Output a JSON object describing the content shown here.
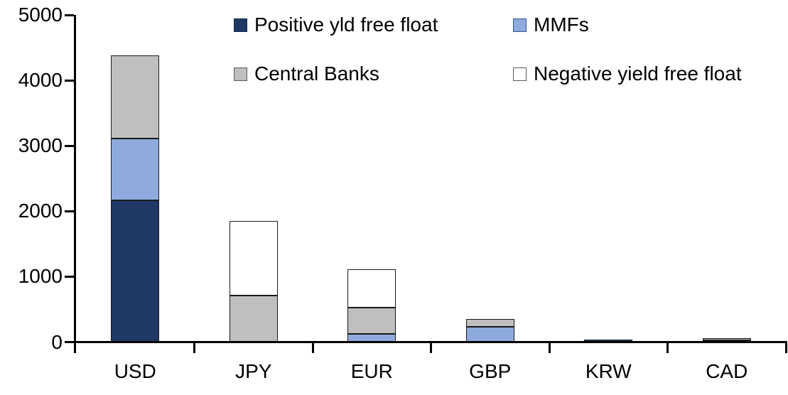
{
  "chart_data": {
    "type": "bar",
    "stacked": true,
    "title": "",
    "xlabel": "",
    "ylabel": "",
    "categories": [
      "USD",
      "JPY",
      "EUR",
      "GBP",
      "KRW",
      "CAD"
    ],
    "series": [
      {
        "name": "Positive yld free float",
        "color": "#1F3864",
        "swatch_border": "#17294C",
        "values": [
          2170,
          0,
          0,
          0,
          40,
          30
        ]
      },
      {
        "name": "MMFs",
        "color": "#8FAADC",
        "swatch_border": "#2F5597",
        "values": [
          940,
          0,
          120,
          230,
          0,
          0
        ]
      },
      {
        "name": "Central Banks",
        "color": "#BFBFBF",
        "swatch_border": "#595959",
        "values": [
          1270,
          710,
          410,
          120,
          0,
          30
        ]
      },
      {
        "name": "Negative yield free float",
        "color": "#FFFFFF",
        "swatch_border": "#595959",
        "values": [
          0,
          1140,
          580,
          0,
          0,
          0
        ]
      }
    ],
    "totals": {
      "USD": 4380,
      "JPY": 1850,
      "EUR": 1110,
      "GBP": 350,
      "KRW": 40,
      "CAD": 60
    },
    "ylim": [
      0,
      5000
    ],
    "ytick_step": 1000,
    "yticks": [
      "0",
      "1000",
      "2000",
      "3000",
      "4000",
      "5000"
    ],
    "grid": false,
    "legend_position": "top-inside",
    "axis_color": "#000000",
    "bar_border_color": "#1A1A1A"
  }
}
